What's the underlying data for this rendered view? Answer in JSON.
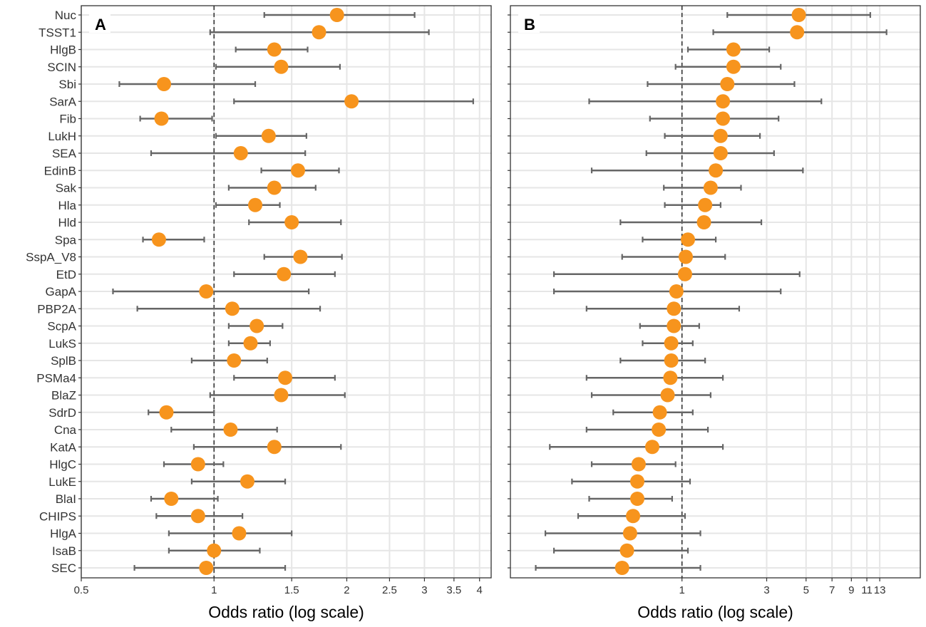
{
  "colors": {
    "point": "#F7941D",
    "errorbar": "#666666",
    "grid": "#E6E6E6",
    "panel_border": "#333333",
    "ref_line": "#222222",
    "text": "#333333"
  },
  "chart_data": [
    {
      "type": "forest",
      "panel_label": "A",
      "xlabel": "Odds ratio (log scale)",
      "xscale": "log",
      "xlim": [
        0.5,
        4.25
      ],
      "reference_line": 1,
      "xticks": [
        0.5,
        1,
        1.5,
        2,
        2.5,
        3,
        3.5,
        4
      ],
      "xtick_labels": [
        "0.5",
        "1",
        "1.5",
        "2",
        "2.5",
        "3",
        "3.5",
        "4"
      ],
      "categories": [
        "Nuc",
        "TSST1",
        "HlgB",
        "SCIN",
        "Sbi",
        "SarA",
        "Fib",
        "LukH",
        "SEA",
        "EdinB",
        "Sak",
        "Hla",
        "Hld",
        "Spa",
        "SspA_V8",
        "EtD",
        "GapA",
        "PBP2A",
        "ScpA",
        "LukS",
        "SplB",
        "PSMa4",
        "BlaZ",
        "SdrD",
        "Cna",
        "KatA",
        "HlgC",
        "LukE",
        "BlaI",
        "CHIPS",
        "HlgA",
        "IsaB",
        "SEC"
      ],
      "estimate": [
        1.9,
        1.73,
        1.37,
        1.42,
        0.77,
        2.05,
        0.76,
        1.33,
        1.15,
        1.55,
        1.37,
        1.24,
        1.5,
        0.75,
        1.57,
        1.44,
        0.96,
        1.1,
        1.25,
        1.21,
        1.11,
        1.45,
        1.42,
        0.78,
        1.09,
        1.37,
        0.92,
        1.19,
        0.8,
        0.92,
        1.14,
        1.0,
        0.96
      ],
      "lower": [
        1.3,
        0.98,
        1.12,
        1.01,
        0.61,
        1.11,
        0.68,
        1.01,
        0.72,
        1.28,
        1.08,
        1.01,
        1.2,
        0.69,
        1.3,
        1.11,
        0.59,
        0.67,
        1.08,
        1.08,
        0.89,
        1.11,
        0.98,
        0.71,
        0.8,
        0.9,
        0.77,
        0.89,
        0.72,
        0.74,
        0.79,
        0.79,
        0.66
      ],
      "upper": [
        2.85,
        3.07,
        1.63,
        1.93,
        1.24,
        3.87,
        0.99,
        1.62,
        1.61,
        1.92,
        1.7,
        1.41,
        1.94,
        0.95,
        1.95,
        1.88,
        1.64,
        1.74,
        1.43,
        1.34,
        1.32,
        1.88,
        1.98,
        1.0,
        1.39,
        1.94,
        1.05,
        1.45,
        1.02,
        1.16,
        1.5,
        1.27,
        1.45
      ]
    },
    {
      "type": "forest",
      "panel_label": "B",
      "xlabel": "Odds ratio (log scale)",
      "xscale": "log",
      "xlim": [
        0.108,
        22
      ],
      "reference_line": 1,
      "xticks": [
        1,
        3,
        5,
        7,
        9,
        11,
        13
      ],
      "xtick_labels": [
        "1",
        "3",
        "5",
        "7",
        "9",
        "11",
        "13"
      ],
      "categories": [
        "Nuc",
        "TSST1",
        "HlgB",
        "SCIN",
        "Sbi",
        "SarA",
        "Fib",
        "LukH",
        "SEA",
        "EdinB",
        "Sak",
        "Hla",
        "Hld",
        "Spa",
        "SspA_V8",
        "EtD",
        "GapA",
        "PBP2A",
        "ScpA",
        "LukS",
        "SplB",
        "PSMa4",
        "BlaZ",
        "SdrD",
        "Cna",
        "KatA",
        "HlgC",
        "LukE",
        "BlaI",
        "CHIPS",
        "HlgA",
        "IsaB",
        "SEC"
      ],
      "estimate": [
        4.55,
        4.45,
        1.95,
        1.95,
        1.8,
        1.7,
        1.7,
        1.65,
        1.65,
        1.55,
        1.45,
        1.35,
        1.33,
        1.08,
        1.05,
        1.04,
        0.93,
        0.9,
        0.9,
        0.87,
        0.87,
        0.86,
        0.83,
        0.75,
        0.74,
        0.68,
        0.57,
        0.56,
        0.56,
        0.53,
        0.51,
        0.49,
        0.46
      ],
      "lower": [
        1.8,
        1.5,
        1.08,
        0.92,
        0.64,
        0.3,
        0.66,
        0.8,
        0.63,
        0.31,
        0.79,
        0.8,
        0.45,
        0.6,
        0.46,
        0.19,
        0.19,
        0.29,
        0.58,
        0.6,
        0.45,
        0.29,
        0.31,
        0.41,
        0.29,
        0.18,
        0.31,
        0.24,
        0.3,
        0.26,
        0.17,
        0.19,
        0.15
      ],
      "upper": [
        11.5,
        14.2,
        3.1,
        3.6,
        4.3,
        6.1,
        3.5,
        2.75,
        3.3,
        4.8,
        2.15,
        1.65,
        2.8,
        1.55,
        1.75,
        4.6,
        3.6,
        2.1,
        1.25,
        1.15,
        1.35,
        1.7,
        1.45,
        1.15,
        1.4,
        1.7,
        0.92,
        1.11,
        0.88,
        1.04,
        1.27,
        1.08,
        1.27
      ]
    }
  ]
}
